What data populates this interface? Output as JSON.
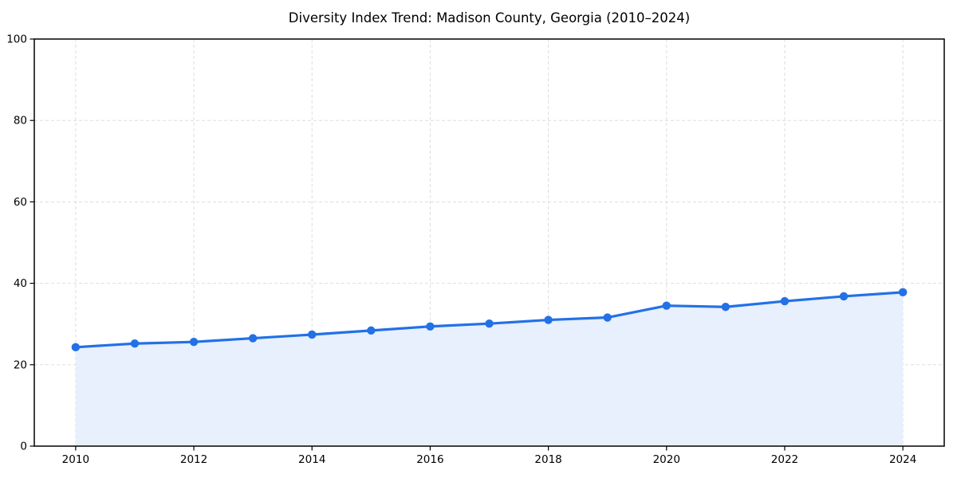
{
  "chart_data": {
    "type": "area",
    "title": "Diversity Index Trend: Madison County, Georgia (2010–2024)",
    "x": [
      2010,
      2011,
      2012,
      2013,
      2014,
      2015,
      2016,
      2017,
      2018,
      2019,
      2020,
      2021,
      2022,
      2023,
      2024
    ],
    "series": [
      {
        "name": "Diversity Index",
        "values": [
          24.3,
          25.2,
          25.6,
          26.5,
          27.4,
          28.4,
          29.4,
          30.1,
          31.0,
          31.6,
          34.5,
          34.2,
          35.6,
          36.8,
          37.8
        ]
      }
    ],
    "xlabel": "",
    "ylabel": "",
    "xlim": [
      2009.3,
      2024.7
    ],
    "ylim": [
      0,
      100
    ],
    "xticks": [
      2010,
      2012,
      2014,
      2016,
      2018,
      2020,
      2022,
      2024
    ],
    "yticks": [
      0,
      20,
      40,
      60,
      80,
      100
    ],
    "grid": true,
    "grid_style": "dashed",
    "legend": "none",
    "marker": "circle",
    "colors": {
      "line": "#2271e6",
      "fill": "#e8effd",
      "grid": "#dddddd",
      "spine": "#000000",
      "text": "#000000",
      "background": "#ffffff"
    }
  }
}
